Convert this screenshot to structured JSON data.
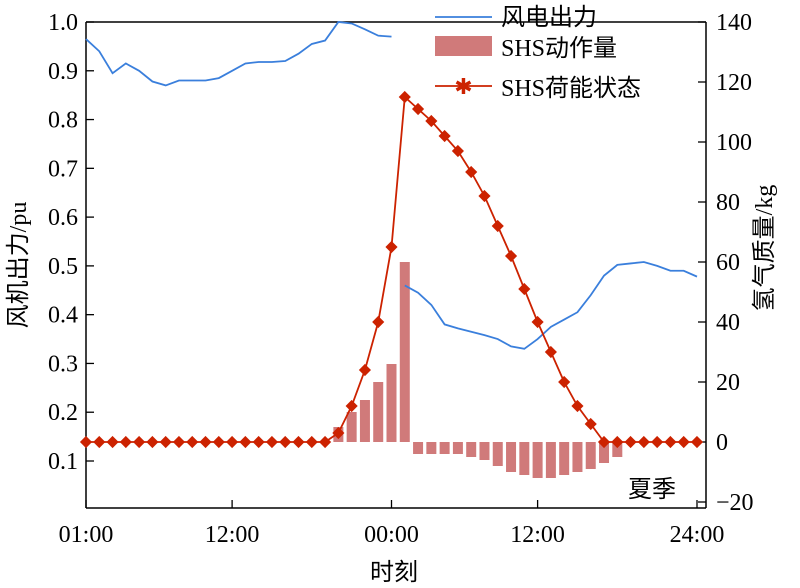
{
  "chart_data": {
    "type": "line",
    "xlabel": "时刻",
    "ylabel_left": "风机出力/pu",
    "ylabel_right": "氢气质量/kg",
    "annotation": "夏季",
    "x_tick_labels": [
      "01:00",
      "12:00",
      "00:00",
      "12:00",
      "24:00"
    ],
    "x_tick_hours": [
      0,
      11,
      23,
      34,
      46
    ],
    "xlim": [
      0,
      46
    ],
    "ylim_left": [
      0.1,
      1.0
    ],
    "y_ticks_left": [
      "0.1",
      "0.2",
      "0.3",
      "0.4",
      "0.5",
      "0.6",
      "0.7",
      "0.8",
      "0.9",
      "1.0"
    ],
    "ylim_right": [
      -20,
      140
    ],
    "y_ticks_right": [
      "−20",
      "0",
      "20",
      "40",
      "60",
      "80",
      "100",
      "120",
      "140"
    ],
    "legend": {
      "position": "top-right",
      "entries": [
        "风电出力",
        "SHS动作量",
        "SHS荷能状态"
      ]
    },
    "colors": {
      "wind": "#3a7fdc",
      "action": "#d07a7a",
      "soc": "#cc2200"
    },
    "series": [
      {
        "name": "风电出力",
        "axis": "left",
        "segments": [
          {
            "x": [
              0,
              1,
              2,
              3,
              4,
              5,
              6,
              7,
              8,
              9,
              10,
              11,
              12,
              13,
              14,
              15,
              16,
              17,
              18,
              19,
              20,
              21,
              22,
              23
            ],
            "y": [
              0.965,
              0.94,
              0.895,
              0.915,
              0.9,
              0.878,
              0.87,
              0.88,
              0.88,
              0.88,
              0.885,
              0.9,
              0.915,
              0.918,
              0.918,
              0.92,
              0.935,
              0.955,
              0.962,
              1.0,
              0.997,
              0.985,
              0.972,
              0.97
            ]
          },
          {
            "x": [
              24,
              25,
              26,
              27,
              28,
              29,
              30,
              31,
              32,
              33,
              34,
              35,
              36,
              37,
              38,
              39,
              40,
              41,
              42,
              43,
              44,
              45,
              46
            ],
            "y": [
              0.46,
              0.445,
              0.42,
              0.38,
              0.372,
              0.365,
              0.358,
              0.35,
              0.335,
              0.33,
              0.35,
              0.375,
              0.39,
              0.405,
              0.44,
              0.48,
              0.502,
              0.505,
              0.508,
              0.5,
              0.49,
              0.49,
              0.478
            ]
          }
        ]
      },
      {
        "name": "SHS动作量",
        "axis": "right",
        "type": "bar",
        "x": [
          19,
          20,
          21,
          22,
          23,
          24,
          25,
          26,
          27,
          28,
          29,
          30,
          31,
          32,
          33,
          34,
          35,
          36,
          37,
          38,
          39,
          40
        ],
        "values": [
          5,
          10,
          14,
          20,
          26,
          60,
          -4,
          -4,
          -4,
          -4,
          -5,
          -6,
          -8,
          -10,
          -11,
          -12,
          -12,
          -11,
          -10,
          -9,
          -7,
          -5
        ]
      },
      {
        "name": "SHS荷能状态",
        "axis": "right",
        "x": [
          0,
          1,
          2,
          3,
          4,
          5,
          6,
          7,
          8,
          9,
          10,
          11,
          12,
          13,
          14,
          15,
          16,
          17,
          18,
          19,
          20,
          21,
          22,
          23,
          24,
          25,
          26,
          27,
          28,
          29,
          30,
          31,
          32,
          33,
          34,
          35,
          36,
          37,
          38,
          39,
          40,
          41,
          42,
          43,
          44,
          45,
          46
        ],
        "y": [
          0,
          0,
          0,
          0,
          0,
          0,
          0,
          0,
          0,
          0,
          0,
          0,
          0,
          0,
          0,
          0,
          0,
          0,
          0,
          3,
          12,
          24,
          40,
          65,
          115,
          111,
          107,
          102,
          97,
          90,
          82,
          72,
          62,
          51,
          40,
          30,
          20,
          12,
          6,
          0,
          0,
          0,
          0,
          0,
          0,
          0,
          0
        ]
      }
    ]
  }
}
